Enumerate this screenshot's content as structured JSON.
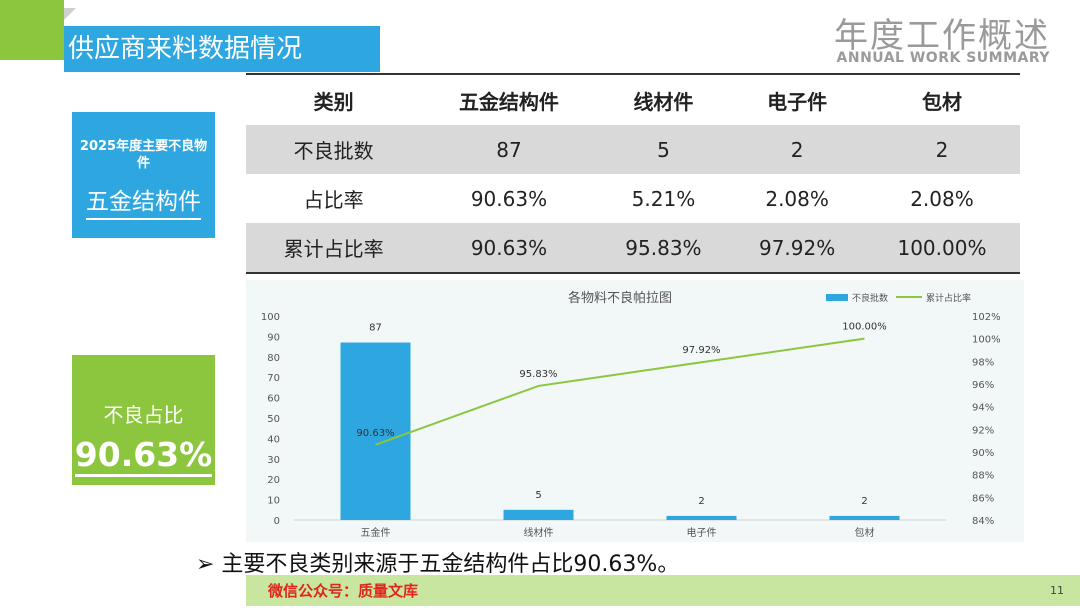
{
  "header": {
    "title": "供应商来料数据情况",
    "brand_cn": "年度工作概述",
    "brand_en": "ANNUAL WORK SUMMARY"
  },
  "table": {
    "headers": [
      "类别",
      "五金结构件",
      "线材件",
      "电子件",
      "包材"
    ],
    "rows": [
      {
        "label": "不良批数",
        "cells": [
          "87",
          "5",
          "2",
          "2"
        ]
      },
      {
        "label": "占比率",
        "cells": [
          "90.63%",
          "5.21%",
          "2.08%",
          "2.08%"
        ]
      },
      {
        "label": "累计占比率",
        "cells": [
          "90.63%",
          "95.83%",
          "97.92%",
          "100.00%"
        ]
      }
    ]
  },
  "side_box_blue": {
    "sub": "2025年度主要不良物件",
    "main": "五金结构件"
  },
  "side_box_green": {
    "sub": "不良占比",
    "main": "90.63%"
  },
  "chart_data": {
    "type": "bar",
    "title": "各物料不良帕拉图",
    "categories": [
      "五金件",
      "线材件",
      "电子件",
      "包材"
    ],
    "series": [
      {
        "name": "不良批数",
        "type": "bar",
        "axis": "left",
        "values": [
          87,
          5,
          2,
          2
        ],
        "labels": [
          "87",
          "5",
          "2",
          "2"
        ]
      },
      {
        "name": "累计占比率",
        "type": "line",
        "axis": "right",
        "values": [
          90.63,
          95.83,
          97.92,
          100.0
        ],
        "labels": [
          "90.63%",
          "95.83%",
          "97.92%",
          "100.00%"
        ]
      }
    ],
    "y_left": {
      "min": 0,
      "max": 100,
      "step": 10
    },
    "y_right": {
      "min": 84,
      "max": 102,
      "step": 2,
      "unit": "%"
    },
    "legend_position": "top-right",
    "colors": {
      "bar": "#2ea7e0",
      "line": "#8cc63f"
    }
  },
  "bullet": "➢ 主要不良类别来源于五金结构件占比90.63%。",
  "footer": {
    "text": "微信公众号：质量文库",
    "page": "11"
  },
  "colors": {
    "green": "#8cc63f",
    "blue": "#2ea7e0"
  }
}
